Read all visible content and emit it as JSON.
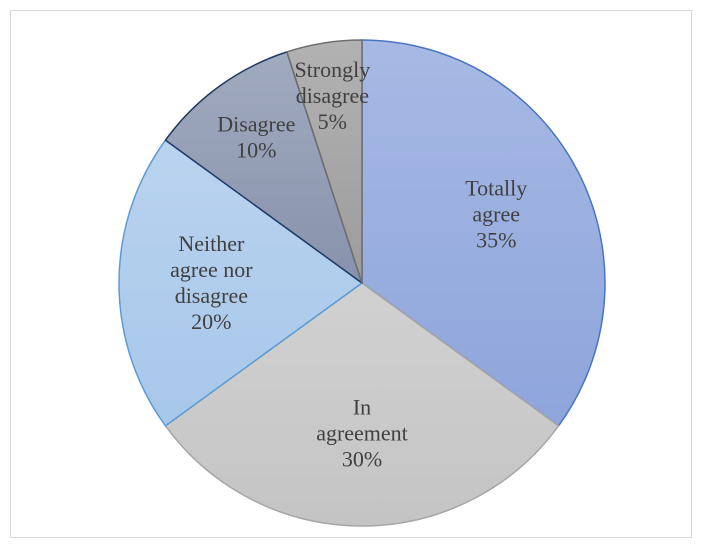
{
  "chart_data": {
    "type": "pie",
    "title": "",
    "start_angle_deg": 0,
    "direction": "clockwise",
    "slices": [
      {
        "label": "Totally agree",
        "value": 35,
        "value_label": "35%",
        "label_lines": [
          "Totally",
          "agree"
        ],
        "color": "#8ea5dc",
        "edge": "#4a74c4"
      },
      {
        "label": "In agreement",
        "value": 30,
        "value_label": "30%",
        "label_lines": [
          "In",
          "agreement"
        ],
        "color": "#c4c4c4",
        "edge": "#a5a5a5"
      },
      {
        "label": "Neither agree nor disagree",
        "value": 20,
        "value_label": "20%",
        "label_lines": [
          "Neither",
          "agree nor",
          "disagree"
        ],
        "color": "#a7c7ea",
        "edge": "#5b9bd5"
      },
      {
        "label": "Disagree",
        "value": 10,
        "value_label": "10%",
        "label_lines": [
          "Disagree"
        ],
        "color": "#8792ac",
        "edge": "#1f3864"
      },
      {
        "label": "Strongly disagree",
        "value": 5,
        "value_label": "5%",
        "label_lines": [
          "Strongly",
          "disagree"
        ],
        "color": "#9c9c9c",
        "edge": "#6f6f6f"
      }
    ]
  }
}
